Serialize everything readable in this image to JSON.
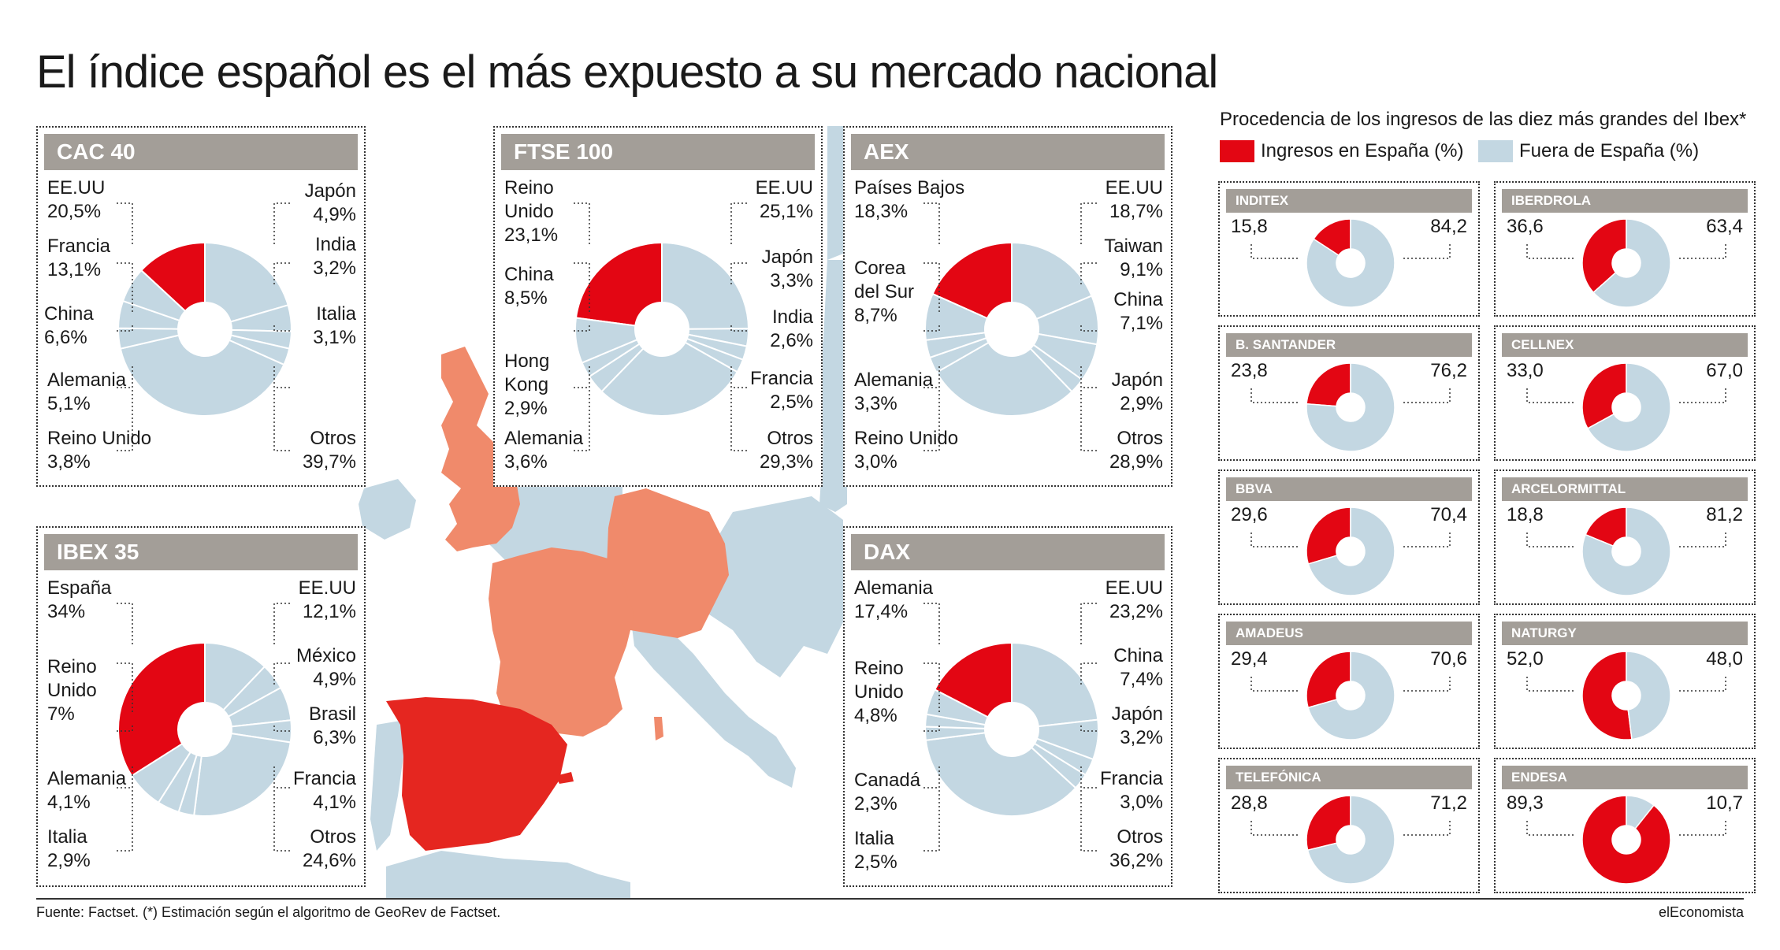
{
  "title": "El índice español es el más expuesto a su mercado nacional",
  "source": "Fuente: Factset. (*) Estimación según el algoritmo de GeoRev de Factset.",
  "brand": "elEconomista",
  "colors": {
    "spain": "#e30613",
    "foreign": "#c3d7e2",
    "header": "#a39e98",
    "map_country": "#f08a6b",
    "map_spain": "#e52620",
    "map_other": "#c3d7e2"
  },
  "legend": {
    "title": "Procedencia de los ingresos de las diez más grandes del Ibex*",
    "spain": "Ingresos en España (%)",
    "foreign": "Fuera de España (%)"
  },
  "chart_data": [
    {
      "type": "pie",
      "title": "CAC 40",
      "slices": [
        {
          "line1": "Francia",
          "line2": "13,1%",
          "value": 13.1,
          "highlight": true
        },
        {
          "line1": "EE.UU",
          "line2": "20,5%",
          "value": 20.5
        },
        {
          "line1": "Japón",
          "line2": "4,9%",
          "value": 4.9
        },
        {
          "line1": "India",
          "line2": "3,2%",
          "value": 3.2
        },
        {
          "line1": "Italia",
          "line2": "3,1%",
          "value": 3.1
        },
        {
          "line1": "Otros",
          "line2": "39,7%",
          "value": 39.7
        },
        {
          "line1": "Reino Unido",
          "line2": "3,8%",
          "value": 3.8
        },
        {
          "line1": "Alemania",
          "line2": "5,1%",
          "value": 5.1
        },
        {
          "line1": "China",
          "line2": "6,6%",
          "value": 6.6
        }
      ]
    },
    {
      "type": "pie",
      "title": "FTSE 100",
      "slices": [
        {
          "line1": "Reino",
          "line1b": "Unido",
          "line2": "23,1%",
          "value": 23.1,
          "highlight": true
        },
        {
          "line1": "EE.UU",
          "line2": "25,1%",
          "value": 25.1
        },
        {
          "line1": "Japón",
          "line2": "3,3%",
          "value": 3.3
        },
        {
          "line1": "India",
          "line2": "2,6%",
          "value": 2.6
        },
        {
          "line1": "Francia",
          "line2": "2,5%",
          "value": 2.5
        },
        {
          "line1": "Otros",
          "line2": "29,3%",
          "value": 29.3
        },
        {
          "line1": "Alemania",
          "line2": "3,6%",
          "value": 3.6
        },
        {
          "line1": "Hong",
          "line1b": "Kong",
          "line2": "2,9%",
          "value": 2.9
        },
        {
          "line1": "China",
          "line2": "8,5%",
          "value": 8.5
        }
      ]
    },
    {
      "type": "pie",
      "title": "AEX",
      "slices": [
        {
          "line1": "Países Bajos",
          "line2": "18,3%",
          "value": 18.3,
          "highlight": true
        },
        {
          "line1": "EE.UU",
          "line2": "18,7%",
          "value": 18.7
        },
        {
          "line1": "Taiwan",
          "line2": "9,1%",
          "value": 9.1
        },
        {
          "line1": "China",
          "line2": "7,1%",
          "value": 7.1
        },
        {
          "line1": "Japón",
          "line2": "2,9%",
          "value": 2.9
        },
        {
          "line1": "Otros",
          "line2": "28,9%",
          "value": 28.9
        },
        {
          "line1": "Reino Unido",
          "line2": "3,0%",
          "value": 3.0
        },
        {
          "line1": "Alemania",
          "line2": "3,3%",
          "value": 3.3
        },
        {
          "line1": "Corea",
          "line1b": "del Sur",
          "line2": "8,7%",
          "value": 8.7
        }
      ]
    },
    {
      "type": "pie",
      "title": "IBEX 35",
      "slices": [
        {
          "line1": "España",
          "line2": "34%",
          "value": 34,
          "highlight": true
        },
        {
          "line1": "EE.UU",
          "line2": "12,1%",
          "value": 12.1
        },
        {
          "line1": "México",
          "line2": "4,9%",
          "value": 4.9
        },
        {
          "line1": "Brasil",
          "line2": "6,3%",
          "value": 6.3
        },
        {
          "line1": "Francia",
          "line2": "4,1%",
          "value": 4.1
        },
        {
          "line1": "Otros",
          "line2": "24,6%",
          "value": 24.6
        },
        {
          "line1": "Italia",
          "line2": "2,9%",
          "value": 2.9
        },
        {
          "line1": "Alemania",
          "line2": "4,1%",
          "value": 4.1
        },
        {
          "line1": "Reino",
          "line1b": "Unido",
          "line2": "7%",
          "value": 7
        }
      ]
    },
    {
      "type": "pie",
      "title": "DAX",
      "slices": [
        {
          "line1": "Alemania",
          "line2": "17,4%",
          "value": 17.4,
          "highlight": true
        },
        {
          "line1": "EE.UU",
          "line2": "23,2%",
          "value": 23.2
        },
        {
          "line1": "China",
          "line2": "7,4%",
          "value": 7.4
        },
        {
          "line1": "Japón",
          "line2": "3,2%",
          "value": 3.2
        },
        {
          "line1": "Francia",
          "line2": "3,0%",
          "value": 3.0
        },
        {
          "line1": "Otros",
          "line2": "36,2%",
          "value": 36.2
        },
        {
          "line1": "Italia",
          "line2": "2,5%",
          "value": 2.5
        },
        {
          "line1": "Canadá",
          "line2": "2,3%",
          "value": 2.3
        },
        {
          "line1": "Reino",
          "line1b": "Unido",
          "line2": "4,8%",
          "value": 4.8
        }
      ]
    },
    {
      "type": "pie",
      "title": "Procedencia de los ingresos de las diez más grandes del Ibex*",
      "series": [
        "Ingresos en España (%)",
        "Fuera de España (%)"
      ],
      "companies": [
        {
          "name": "INDITEX",
          "spain": 15.8,
          "foreign": 84.2,
          "spain_label": "15,8",
          "foreign_label": "84,2"
        },
        {
          "name": "IBERDROLA",
          "spain": 36.6,
          "foreign": 63.4,
          "spain_label": "36,6",
          "foreign_label": "63,4"
        },
        {
          "name": "B. SANTANDER",
          "spain": 23.8,
          "foreign": 76.2,
          "spain_label": "23,8",
          "foreign_label": "76,2"
        },
        {
          "name": "CELLNEX",
          "spain": 33.0,
          "foreign": 67.0,
          "spain_label": "33,0",
          "foreign_label": "67,0"
        },
        {
          "name": "BBVA",
          "spain": 29.6,
          "foreign": 70.4,
          "spain_label": "29,6",
          "foreign_label": "70,4"
        },
        {
          "name": "ARCELORMITTAL",
          "spain": 18.8,
          "foreign": 81.2,
          "spain_label": "18,8",
          "foreign_label": "81,2"
        },
        {
          "name": "AMADEUS",
          "spain": 29.4,
          "foreign": 70.6,
          "spain_label": "29,4",
          "foreign_label": "70,6"
        },
        {
          "name": "NATURGY",
          "spain": 52.0,
          "foreign": 48.0,
          "spain_label": "52,0",
          "foreign_label": "48,0"
        },
        {
          "name": "TELEFÓNICA",
          "spain": 28.8,
          "foreign": 71.2,
          "spain_label": "28,8",
          "foreign_label": "71,2"
        },
        {
          "name": "ENDESA",
          "spain": 89.3,
          "foreign": 10.7,
          "spain_label": "89,3",
          "foreign_label": "10,7"
        }
      ]
    }
  ]
}
